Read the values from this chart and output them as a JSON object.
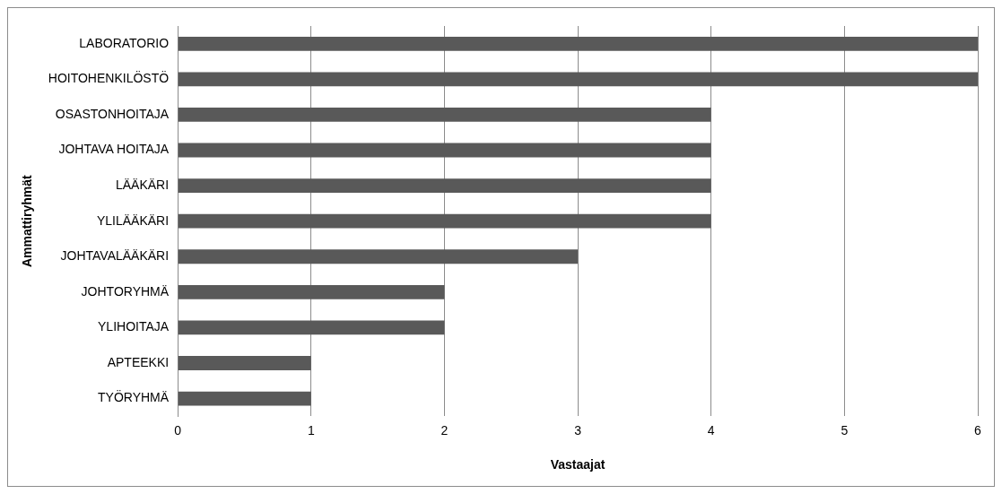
{
  "chart_data": {
    "type": "bar",
    "orientation": "horizontal",
    "xlabel": "Vastaajat",
    "ylabel": "Ammattiryhmät",
    "categories": [
      "LABORATORIO",
      "HOITOHENKILÖSTÖ",
      "OSASTONHOITAJA",
      "JOHTAVA HOITAJA",
      "LÄÄKÄRI",
      "YLILÄÄKÄRI",
      "JOHTAVALÄÄKÄRI",
      "JOHTORYHMÄ",
      "YLIHOITAJA",
      "APTEEKKI",
      "TYÖRYHMÄ"
    ],
    "values": [
      6,
      6,
      4,
      4,
      4,
      4,
      3,
      2,
      2,
      1,
      1
    ],
    "color": "#595959",
    "xlim": [
      0,
      6
    ],
    "xticks": [
      0,
      1,
      2,
      3,
      4,
      5,
      6
    ],
    "grid": "x",
    "legend": false
  }
}
